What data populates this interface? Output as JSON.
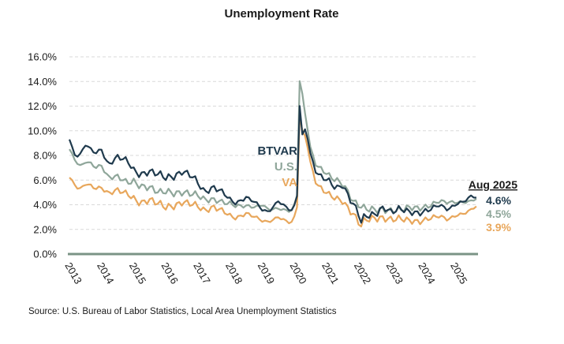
{
  "chart_data": {
    "type": "line",
    "title": "Unemployment Rate",
    "source": "Source: U.S. Bureau of Labor Statistics, Local Area Unemployment Statistics",
    "ylim": [
      0,
      16
    ],
    "yticks": [
      "0.0%",
      "2.0%",
      "4.0%",
      "6.0%",
      "8.0%",
      "10.0%",
      "12.0%",
      "14.0%",
      "16.0%"
    ],
    "xticks": [
      "2013",
      "2014",
      "2015",
      "2016",
      "2017",
      "2018",
      "2019",
      "2020",
      "2021",
      "2022",
      "2023",
      "2024",
      "2025"
    ],
    "x_start": 2013.0,
    "x_end": 2025.67,
    "grid": true,
    "end_header": "Aug 2025",
    "series": [
      {
        "name": "BTVAR",
        "color": "#1f3a4d",
        "end_label": "4.6%",
        "anchors": [
          [
            2013.0,
            9.3
          ],
          [
            2013.15,
            8.1
          ],
          [
            2013.3,
            7.9
          ],
          [
            2013.5,
            8.9
          ],
          [
            2013.7,
            8.4
          ],
          [
            2013.85,
            8.2
          ],
          [
            2014.0,
            8.5
          ],
          [
            2014.2,
            7.2
          ],
          [
            2014.5,
            7.9
          ],
          [
            2014.8,
            7.6
          ],
          [
            2015.0,
            6.8
          ],
          [
            2015.2,
            6.4
          ],
          [
            2015.5,
            6.7
          ],
          [
            2015.8,
            6.5
          ],
          [
            2016.0,
            6.2
          ],
          [
            2016.3,
            6.3
          ],
          [
            2016.5,
            6.7
          ],
          [
            2016.8,
            6.4
          ],
          [
            2017.0,
            5.8
          ],
          [
            2017.2,
            5.0
          ],
          [
            2017.5,
            5.4
          ],
          [
            2017.8,
            5.0
          ],
          [
            2018.0,
            4.4
          ],
          [
            2018.2,
            4.1
          ],
          [
            2018.5,
            4.6
          ],
          [
            2018.8,
            4.2
          ],
          [
            2019.0,
            3.6
          ],
          [
            2019.2,
            3.4
          ],
          [
            2019.5,
            4.3
          ],
          [
            2019.8,
            3.7
          ],
          [
            2019.95,
            3.5
          ],
          [
            2020.08,
            4.4
          ],
          [
            2020.17,
            12.3
          ],
          [
            2020.25,
            9.7
          ],
          [
            2020.35,
            10.2
          ],
          [
            2020.5,
            8.2
          ],
          [
            2020.7,
            6.5
          ],
          [
            2020.9,
            6.2
          ],
          [
            2021.1,
            5.9
          ],
          [
            2021.3,
            5.3
          ],
          [
            2021.5,
            5.6
          ],
          [
            2021.7,
            4.6
          ],
          [
            2021.85,
            4.0
          ],
          [
            2022.0,
            3.3
          ],
          [
            2022.05,
            2.5
          ],
          [
            2022.2,
            3.1
          ],
          [
            2022.5,
            3.2
          ],
          [
            2022.8,
            3.8
          ],
          [
            2023.0,
            3.4
          ],
          [
            2023.3,
            3.7
          ],
          [
            2023.6,
            3.4
          ],
          [
            2023.9,
            3.3
          ],
          [
            2024.2,
            3.6
          ],
          [
            2024.5,
            4.0
          ],
          [
            2024.8,
            3.6
          ],
          [
            2025.0,
            4.0
          ],
          [
            2025.3,
            4.3
          ],
          [
            2025.5,
            4.7
          ],
          [
            2025.67,
            4.6
          ]
        ]
      },
      {
        "name": "U.S.",
        "color": "#8fa69a",
        "end_label": "4.5%",
        "anchors": [
          [
            2013.0,
            8.5
          ],
          [
            2013.2,
            7.5
          ],
          [
            2013.35,
            7.1
          ],
          [
            2013.5,
            7.5
          ],
          [
            2013.7,
            7.3
          ],
          [
            2013.85,
            7.0
          ],
          [
            2014.0,
            7.2
          ],
          [
            2014.2,
            6.2
          ],
          [
            2014.5,
            6.3
          ],
          [
            2014.8,
            5.8
          ],
          [
            2015.0,
            5.9
          ],
          [
            2015.2,
            5.5
          ],
          [
            2015.5,
            5.4
          ],
          [
            2015.8,
            5.0
          ],
          [
            2016.0,
            5.1
          ],
          [
            2016.3,
            4.9
          ],
          [
            2016.5,
            5.0
          ],
          [
            2016.8,
            4.9
          ],
          [
            2017.0,
            4.8
          ],
          [
            2017.2,
            4.4
          ],
          [
            2017.5,
            4.4
          ],
          [
            2017.8,
            4.2
          ],
          [
            2018.0,
            4.1
          ],
          [
            2018.2,
            3.9
          ],
          [
            2018.5,
            3.9
          ],
          [
            2018.8,
            3.8
          ],
          [
            2019.0,
            4.0
          ],
          [
            2019.2,
            3.6
          ],
          [
            2019.5,
            3.7
          ],
          [
            2019.8,
            3.5
          ],
          [
            2019.95,
            3.6
          ],
          [
            2020.08,
            4.4
          ],
          [
            2020.17,
            14.4
          ],
          [
            2020.25,
            13.0
          ],
          [
            2020.35,
            11.1
          ],
          [
            2020.5,
            8.7
          ],
          [
            2020.7,
            7.1
          ],
          [
            2020.9,
            6.8
          ],
          [
            2021.1,
            6.3
          ],
          [
            2021.3,
            6.0
          ],
          [
            2021.5,
            5.7
          ],
          [
            2021.7,
            4.9
          ],
          [
            2021.85,
            4.2
          ],
          [
            2022.0,
            4.0
          ],
          [
            2022.05,
            3.9
          ],
          [
            2022.2,
            3.7
          ],
          [
            2022.5,
            3.6
          ],
          [
            2022.8,
            3.6
          ],
          [
            2023.0,
            3.5
          ],
          [
            2023.3,
            3.6
          ],
          [
            2023.6,
            3.8
          ],
          [
            2023.9,
            3.7
          ],
          [
            2024.2,
            3.9
          ],
          [
            2024.5,
            4.3
          ],
          [
            2024.8,
            4.2
          ],
          [
            2025.0,
            4.2
          ],
          [
            2025.3,
            4.2
          ],
          [
            2025.5,
            4.3
          ],
          [
            2025.67,
            4.5
          ]
        ]
      },
      {
        "name": "VA",
        "color": "#e8a75c",
        "end_label": "3.9%",
        "anchors": [
          [
            2013.0,
            6.2
          ],
          [
            2013.15,
            5.7
          ],
          [
            2013.3,
            5.2
          ],
          [
            2013.5,
            5.7
          ],
          [
            2013.7,
            5.5
          ],
          [
            2013.85,
            5.3
          ],
          [
            2014.0,
            5.4
          ],
          [
            2014.2,
            4.9
          ],
          [
            2014.5,
            5.2
          ],
          [
            2014.8,
            4.9
          ],
          [
            2015.0,
            4.5
          ],
          [
            2015.2,
            4.1
          ],
          [
            2015.5,
            4.4
          ],
          [
            2015.8,
            4.1
          ],
          [
            2016.0,
            3.8
          ],
          [
            2016.3,
            3.9
          ],
          [
            2016.5,
            4.2
          ],
          [
            2016.8,
            4.1
          ],
          [
            2017.0,
            3.9
          ],
          [
            2017.2,
            3.5
          ],
          [
            2017.5,
            3.8
          ],
          [
            2017.8,
            3.5
          ],
          [
            2018.0,
            3.1
          ],
          [
            2018.2,
            2.9
          ],
          [
            2018.5,
            3.3
          ],
          [
            2018.8,
            3.0
          ],
          [
            2019.0,
            2.7
          ],
          [
            2019.2,
            2.6
          ],
          [
            2019.5,
            3.0
          ],
          [
            2019.8,
            2.6
          ],
          [
            2019.95,
            2.6
          ],
          [
            2020.08,
            3.5
          ],
          [
            2020.17,
            11.5
          ],
          [
            2020.25,
            10.0
          ],
          [
            2020.35,
            9.5
          ],
          [
            2020.5,
            7.5
          ],
          [
            2020.7,
            5.6
          ],
          [
            2020.9,
            5.2
          ],
          [
            2021.1,
            4.8
          ],
          [
            2021.3,
            4.5
          ],
          [
            2021.5,
            4.3
          ],
          [
            2021.7,
            3.6
          ],
          [
            2021.85,
            3.2
          ],
          [
            2022.0,
            2.6
          ],
          [
            2022.05,
            2.2
          ],
          [
            2022.2,
            2.8
          ],
          [
            2022.5,
            2.9
          ],
          [
            2022.8,
            2.9
          ],
          [
            2023.0,
            2.8
          ],
          [
            2023.3,
            2.9
          ],
          [
            2023.6,
            2.7
          ],
          [
            2023.9,
            2.6
          ],
          [
            2024.2,
            2.9
          ],
          [
            2024.5,
            3.1
          ],
          [
            2024.8,
            2.8
          ],
          [
            2025.0,
            3.1
          ],
          [
            2025.3,
            3.3
          ],
          [
            2025.5,
            3.6
          ],
          [
            2025.67,
            3.9
          ]
        ]
      }
    ]
  }
}
